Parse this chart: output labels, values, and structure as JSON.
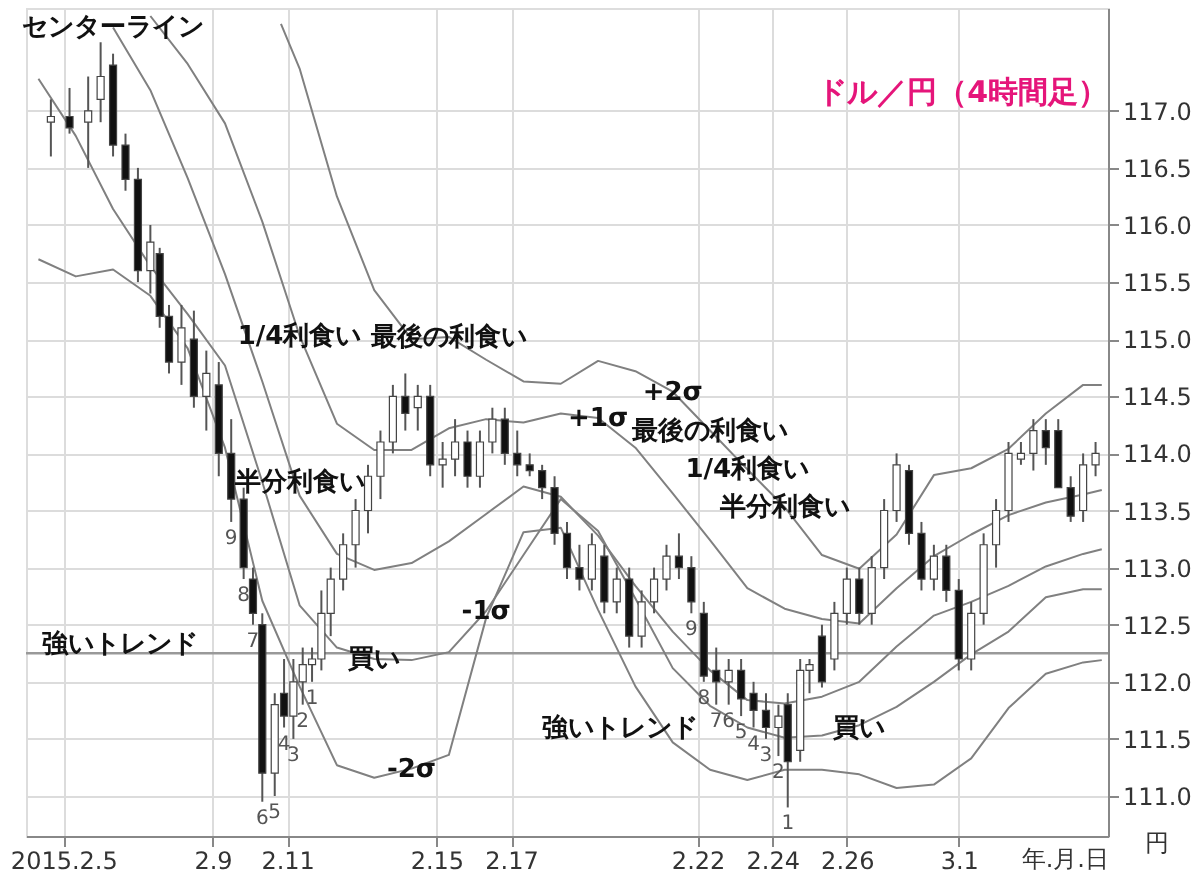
{
  "chart_data": {
    "type": "candlestick",
    "title": "ドル／円（4時間足）",
    "xlabel": "年.月.日",
    "ylabel": "円",
    "x": [
      "2015-02-04T16:00",
      "2015-02-05T04:00",
      "2015-02-05T16:00",
      "2015-02-06T00:00",
      "2015-02-06T08:00",
      "2015-02-06T16:00",
      "2015-02-07T00:00",
      "2015-02-07T08:00",
      "2015-02-07T14:00",
      "2015-02-07T20:00",
      "2015-02-08T04:00",
      "2015-02-08T12:00",
      "2015-02-08T20:00",
      "2015-02-09T04:00",
      "2015-02-09T12:00",
      "2015-02-09T20:00",
      "2015-02-10T02:00",
      "2015-02-10T08:00",
      "2015-02-10T16:00",
      "2015-02-10T22:00",
      "2015-02-11T04:00",
      "2015-02-11T10:00",
      "2015-02-11T16:00",
      "2015-02-11T22:00",
      "2015-02-12T04:00",
      "2015-02-12T12:00",
      "2015-02-12T20:00",
      "2015-02-13T04:00",
      "2015-02-13T12:00",
      "2015-02-13T20:00",
      "2015-02-14T04:00",
      "2015-02-14T12:00",
      "2015-02-14T20:00",
      "2015-02-15T04:00",
      "2015-02-15T12:00",
      "2015-02-15T20:00",
      "2015-02-16T04:00",
      "2015-02-16T12:00",
      "2015-02-16T20:00",
      "2015-02-17T04:00",
      "2015-02-17T12:00",
      "2015-02-17T20:00",
      "2015-02-18T04:00",
      "2015-02-18T12:00",
      "2015-02-18T20:00",
      "2015-02-19T04:00",
      "2015-02-19T12:00",
      "2015-02-19T20:00",
      "2015-02-20T04:00",
      "2015-02-20T12:00",
      "2015-02-20T20:00",
      "2015-02-21T04:00",
      "2015-02-21T12:00",
      "2015-02-21T20:00",
      "2015-02-22T04:00",
      "2015-02-22T12:00",
      "2015-02-22T20:00",
      "2015-02-23T04:00",
      "2015-02-23T12:00",
      "2015-02-23T20:00",
      "2015-02-24T04:00",
      "2015-02-24T10:00",
      "2015-02-24T18:00",
      "2015-02-25T00:00",
      "2015-02-25T08:00",
      "2015-02-25T16:00",
      "2015-02-26T00:00",
      "2015-02-26T08:00",
      "2015-02-26T16:00",
      "2015-02-27T00:00",
      "2015-02-27T08:00",
      "2015-02-27T16:00",
      "2015-02-28T00:00",
      "2015-02-28T08:00",
      "2015-02-28T16:00",
      "2015-03-01T00:00",
      "2015-03-01T08:00",
      "2015-03-01T16:00",
      "2015-03-02T00:00",
      "2015-03-02T08:00",
      "2015-03-02T16:00",
      "2015-03-03T00:00",
      "2015-03-03T08:00",
      "2015-03-03T16:00",
      "2015-03-04T00:00",
      "2015-03-04T08:00",
      "2015-03-04T16:00"
    ],
    "ohlc": [
      [
        116.9,
        117.1,
        116.6,
        116.95
      ],
      [
        116.95,
        117.2,
        116.8,
        116.85
      ],
      [
        116.9,
        117.3,
        116.5,
        117.0
      ],
      [
        117.1,
        117.6,
        116.9,
        117.3
      ],
      [
        117.4,
        117.5,
        116.6,
        116.7
      ],
      [
        116.7,
        116.8,
        116.3,
        116.4
      ],
      [
        116.4,
        116.5,
        115.5,
        115.6
      ],
      [
        115.6,
        116.0,
        115.4,
        115.85
      ],
      [
        115.75,
        115.8,
        115.1,
        115.2
      ],
      [
        115.2,
        115.3,
        114.7,
        114.8
      ],
      [
        114.8,
        115.3,
        114.6,
        115.1
      ],
      [
        115.0,
        115.25,
        114.4,
        114.5
      ],
      [
        114.5,
        114.9,
        114.2,
        114.7
      ],
      [
        114.6,
        114.8,
        113.8,
        114.0
      ],
      [
        114.0,
        114.3,
        113.4,
        113.6
      ],
      [
        113.6,
        113.7,
        112.9,
        113.0
      ],
      [
        112.9,
        113.0,
        112.5,
        112.6
      ],
      [
        112.5,
        112.6,
        110.95,
        111.2
      ],
      [
        111.2,
        111.9,
        111.0,
        111.8
      ],
      [
        111.9,
        112.2,
        111.6,
        111.7
      ],
      [
        111.7,
        112.2,
        111.5,
        112.0
      ],
      [
        112.0,
        112.3,
        111.8,
        112.15
      ],
      [
        112.15,
        112.3,
        112.0,
        112.2
      ],
      [
        112.2,
        112.8,
        112.1,
        112.6
      ],
      [
        112.6,
        113.0,
        112.4,
        112.9
      ],
      [
        112.9,
        113.3,
        112.8,
        113.2
      ],
      [
        113.2,
        113.6,
        113.0,
        113.5
      ],
      [
        113.5,
        113.9,
        113.3,
        113.8
      ],
      [
        113.8,
        114.2,
        113.6,
        114.1
      ],
      [
        114.1,
        114.6,
        114.0,
        114.5
      ],
      [
        114.5,
        114.7,
        114.2,
        114.35
      ],
      [
        114.4,
        114.6,
        114.2,
        114.5
      ],
      [
        114.5,
        114.6,
        113.8,
        113.9
      ],
      [
        113.9,
        114.1,
        113.7,
        113.95
      ],
      [
        113.95,
        114.3,
        113.8,
        114.1
      ],
      [
        114.1,
        114.2,
        113.7,
        113.8
      ],
      [
        113.8,
        114.2,
        113.7,
        114.1
      ],
      [
        114.1,
        114.4,
        114.0,
        114.3
      ],
      [
        114.3,
        114.4,
        113.9,
        114.0
      ],
      [
        114.0,
        114.2,
        113.8,
        113.9
      ],
      [
        113.9,
        114.0,
        113.8,
        113.85
      ],
      [
        113.85,
        113.9,
        113.6,
        113.7
      ],
      [
        113.7,
        113.8,
        113.2,
        113.3
      ],
      [
        113.3,
        113.4,
        112.9,
        113.0
      ],
      [
        113.0,
        113.2,
        112.8,
        112.9
      ],
      [
        112.9,
        113.3,
        112.8,
        113.2
      ],
      [
        113.1,
        113.2,
        112.6,
        112.7
      ],
      [
        112.7,
        113.0,
        112.6,
        112.9
      ],
      [
        112.9,
        113.0,
        112.3,
        112.4
      ],
      [
        112.4,
        112.8,
        112.3,
        112.7
      ],
      [
        112.7,
        113.0,
        112.6,
        112.9
      ],
      [
        112.9,
        113.2,
        112.8,
        113.1
      ],
      [
        113.1,
        113.3,
        112.9,
        113.0
      ],
      [
        113.0,
        113.1,
        112.6,
        112.7
      ],
      [
        112.6,
        112.7,
        112.0,
        112.05
      ],
      [
        112.1,
        112.3,
        111.8,
        112.0
      ],
      [
        112.0,
        112.2,
        111.8,
        112.1
      ],
      [
        112.1,
        112.2,
        111.7,
        111.85
      ],
      [
        111.9,
        112.0,
        111.6,
        111.75
      ],
      [
        111.75,
        111.9,
        111.5,
        111.6
      ],
      [
        111.6,
        111.8,
        111.35,
        111.7
      ],
      [
        111.8,
        111.9,
        110.9,
        111.3
      ],
      [
        111.4,
        112.2,
        111.3,
        112.1
      ],
      [
        112.1,
        112.2,
        111.9,
        112.15
      ],
      [
        112.4,
        112.5,
        111.95,
        112.0
      ],
      [
        112.2,
        112.7,
        112.1,
        112.6
      ],
      [
        112.6,
        113.0,
        112.5,
        112.9
      ],
      [
        112.9,
        113.0,
        112.5,
        112.6
      ],
      [
        112.6,
        113.1,
        112.5,
        113.0
      ],
      [
        113.0,
        113.6,
        112.9,
        113.5
      ],
      [
        113.5,
        114.0,
        113.4,
        113.9
      ],
      [
        113.85,
        113.9,
        113.2,
        113.3
      ],
      [
        113.3,
        113.4,
        112.8,
        112.9
      ],
      [
        112.9,
        113.2,
        112.8,
        113.1
      ],
      [
        113.1,
        113.2,
        112.7,
        112.8
      ],
      [
        112.8,
        112.9,
        112.1,
        112.2
      ],
      [
        112.2,
        112.7,
        112.1,
        112.6
      ],
      [
        112.6,
        113.3,
        112.5,
        113.2
      ],
      [
        113.2,
        113.6,
        113.0,
        113.5
      ],
      [
        113.5,
        114.1,
        113.4,
        114.0
      ],
      [
        113.95,
        114.1,
        113.9,
        114.0
      ],
      [
        114.0,
        114.3,
        113.85,
        114.2
      ],
      [
        114.2,
        114.3,
        113.9,
        114.05
      ],
      [
        114.2,
        114.3,
        113.7,
        113.7
      ],
      [
        113.7,
        113.8,
        113.4,
        113.45
      ],
      [
        113.5,
        114.0,
        113.4,
        113.9
      ],
      [
        113.9,
        114.1,
        113.8,
        114.0
      ]
    ],
    "series": [
      {
        "type": "line",
        "color": "#808080",
        "x": [
          "2015-02-10T20:00",
          "2015-02-11T08:00",
          "2015-02-12T08:00",
          "2015-02-13T08:00",
          "2015-02-14T08:00",
          "2015-02-15T08:00",
          "2015-02-16T08:00",
          "2015-02-17T08:00",
          "2015-02-18T08:00",
          "2015-02-19T08:00",
          "2015-02-20T08:00",
          "2015-02-21T08:00",
          "2015-02-22T08:00",
          "2015-02-23T08:00",
          "2015-02-24T08:00",
          "2015-02-25T08:00",
          "2015-02-26T08:00",
          "2015-02-27T08:00",
          "2015-02-28T08:00",
          "2015-03-01T08:00",
          "2015-03-02T08:00",
          "2015-03-03T08:00",
          "2015-03-04T08:00",
          "2015-03-04T20:00"
        ],
        "values": [
          117.76,
          117.37,
          116.25,
          115.43,
          115.0,
          115.02,
          114.82,
          114.63,
          114.61,
          114.81,
          114.72,
          114.54,
          114.2,
          113.86,
          113.53,
          113.11,
          112.99,
          113.29,
          113.81,
          113.87,
          114.04,
          114.35,
          114.6,
          114.6
        ]
      },
      {
        "type": "line",
        "color": "#808080",
        "x": [
          "2015-02-07T08:00",
          "2015-02-08T08:00",
          "2015-02-09T08:00",
          "2015-02-10T08:00",
          "2015-02-11T08:00",
          "2015-02-12T08:00",
          "2015-02-13T08:00",
          "2015-02-14T08:00",
          "2015-02-15T08:00",
          "2015-02-16T08:00",
          "2015-02-17T08:00",
          "2015-02-18T08:00",
          "2015-02-19T08:00",
          "2015-02-20T08:00",
          "2015-02-21T08:00",
          "2015-02-22T08:00",
          "2015-02-23T08:00",
          "2015-02-24T08:00",
          "2015-02-25T08:00",
          "2015-02-26T08:00",
          "2015-02-27T08:00",
          "2015-02-28T08:00",
          "2015-03-01T08:00",
          "2015-03-02T08:00",
          "2015-03-03T08:00",
          "2015-03-04T08:00",
          "2015-03-04T20:00"
        ],
        "values": [
          117.83,
          117.41,
          116.89,
          116.03,
          115.03,
          114.26,
          114.03,
          114.03,
          114.22,
          114.3,
          114.27,
          114.35,
          114.31,
          114.05,
          113.65,
          113.24,
          112.82,
          112.64,
          112.55,
          112.51,
          112.82,
          113.1,
          113.29,
          113.46,
          113.57,
          113.64,
          113.68
        ]
      },
      {
        "type": "line",
        "color": "#808080",
        "x": [
          "2015-02-06T08:00",
          "2015-02-07T08:00",
          "2015-02-08T08:00",
          "2015-02-09T08:00",
          "2015-02-10T08:00",
          "2015-02-11T08:00",
          "2015-02-12T08:00",
          "2015-02-13T08:00",
          "2015-02-14T08:00",
          "2015-02-15T08:00",
          "2015-02-16T08:00",
          "2015-02-17T08:00",
          "2015-02-18T08:00",
          "2015-02-19T08:00",
          "2015-02-20T08:00",
          "2015-02-21T08:00",
          "2015-02-22T08:00",
          "2015-02-23T08:00",
          "2015-02-24T08:00",
          "2015-02-25T08:00",
          "2015-02-26T08:00",
          "2015-02-27T08:00",
          "2015-02-28T08:00",
          "2015-03-01T08:00",
          "2015-03-02T08:00",
          "2015-03-03T08:00",
          "2015-03-04T08:00",
          "2015-03-04T20:00"
        ],
        "values": [
          117.73,
          117.18,
          116.41,
          115.57,
          114.63,
          113.63,
          113.12,
          112.98,
          113.04,
          113.23,
          113.47,
          113.71,
          113.62,
          113.28,
          112.84,
          112.44,
          112.1,
          111.84,
          111.81,
          111.87,
          112.0,
          112.31,
          112.58,
          112.7,
          112.84,
          113.01,
          113.12,
          113.16
        ]
      },
      {
        "type": "line",
        "color": "#808080",
        "x": [
          "2015-02-04T08:00",
          "2015-02-05T08:00",
          "2015-02-06T08:00",
          "2015-02-07T08:00",
          "2015-02-08T08:00",
          "2015-02-09T08:00",
          "2015-02-10T08:00",
          "2015-02-11T08:00",
          "2015-02-12T08:00",
          "2015-02-13T08:00",
          "2015-02-14T08:00",
          "2015-02-15T08:00",
          "2015-02-16T08:00",
          "2015-02-17T08:00",
          "2015-02-18T08:00",
          "2015-02-19T08:00",
          "2015-02-20T08:00",
          "2015-02-21T08:00",
          "2015-02-22T08:00",
          "2015-02-23T08:00",
          "2015-02-24T08:00",
          "2015-02-25T08:00",
          "2015-02-26T08:00",
          "2015-02-27T08:00",
          "2015-02-28T08:00",
          "2015-03-01T08:00",
          "2015-03-02T08:00",
          "2015-03-03T08:00",
          "2015-03-04T08:00",
          "2015-03-04T20:00"
        ],
        "values": [
          117.28,
          116.78,
          116.14,
          115.64,
          115.22,
          114.77,
          113.75,
          112.67,
          112.3,
          112.2,
          112.19,
          112.26,
          112.62,
          113.11,
          113.6,
          113.32,
          112.73,
          112.12,
          111.79,
          111.6,
          111.51,
          111.53,
          111.62,
          111.78,
          112.0,
          112.24,
          112.44,
          112.74,
          112.81,
          112.81
        ]
      },
      {
        "type": "line",
        "color": "#808080",
        "x": [
          "2015-02-04T08:00",
          "2015-02-05T08:00",
          "2015-02-06T08:00",
          "2015-02-07T08:00",
          "2015-02-08T08:00",
          "2015-02-09T08:00",
          "2015-02-10T08:00",
          "2015-02-11T08:00",
          "2015-02-12T08:00",
          "2015-02-13T08:00",
          "2015-02-14T08:00",
          "2015-02-15T08:00",
          "2015-02-16T08:00",
          "2015-02-17T08:00",
          "2015-02-18T08:00",
          "2015-02-19T08:00",
          "2015-02-20T08:00",
          "2015-02-21T08:00",
          "2015-02-22T08:00",
          "2015-02-23T08:00",
          "2015-02-24T08:00",
          "2015-02-25T08:00",
          "2015-02-26T08:00",
          "2015-02-27T08:00",
          "2015-02-28T08:00",
          "2015-03-01T08:00",
          "2015-03-02T08:00",
          "2015-03-03T08:00",
          "2015-03-04T08:00",
          "2015-03-04T20:00"
        ],
        "values": [
          115.7,
          115.55,
          115.61,
          115.38,
          114.92,
          114.05,
          112.71,
          111.96,
          111.27,
          111.16,
          111.24,
          111.36,
          112.56,
          113.31,
          113.35,
          112.63,
          111.96,
          111.47,
          111.23,
          111.14,
          111.23,
          111.23,
          111.19,
          111.07,
          111.1,
          111.33,
          111.77,
          112.07,
          112.17,
          112.19
        ]
      }
    ],
    "xlim": [
      "2015-02-04",
      "2015-03-05"
    ],
    "ylim": [
      110.65,
      117.9
    ],
    "xticks": [
      {
        "value": "2015-02-05",
        "label": "2015.2.5"
      },
      {
        "value": "2015-02-09",
        "label": "2.9"
      },
      {
        "value": "2015-02-11",
        "label": "2.11"
      },
      {
        "value": "2015-02-15",
        "label": "2.15"
      },
      {
        "value": "2015-02-17",
        "label": "2.17"
      },
      {
        "value": "2015-02-22",
        "label": "2.22"
      },
      {
        "value": "2015-02-24",
        "label": "2.24"
      },
      {
        "value": "2015-02-26",
        "label": "2.26"
      },
      {
        "value": "2015-03-01",
        "label": "3.1"
      }
    ],
    "yticks": [
      {
        "value": 111,
        "label": "111.0"
      },
      111.5,
      {
        "value": 112,
        "label": "112.0"
      },
      112.5,
      {
        "value": 113,
        "label": "113.0"
      },
      113.5,
      {
        "value": 114,
        "label": "114.0"
      },
      114.5,
      {
        "value": 115,
        "label": "115.0"
      },
      115.5,
      {
        "value": 116,
        "label": "116.0"
      },
      116.5,
      {
        "value": 117,
        "label": "117.0"
      }
    ],
    "grid": true,
    "ref_lines": [
      {
        "axis": "y",
        "value": 112.25,
        "color": "#999999"
      }
    ],
    "annotations": [
      {
        "text": "最後の利食い",
        "x": "2015-02-15T08:00",
        "y": 115.02
      },
      {
        "text": "1/4利食い",
        "x": "2015-02-11T08:00",
        "y": 115.03
      },
      {
        "text": "半分利食い",
        "x": "2015-02-11T08:00",
        "y": 113.75
      },
      {
        "text": "買い",
        "x": "2015-02-13T08:00",
        "y": 112.2
      },
      {
        "text": "最後の利食い",
        "x": "2015-02-22T08:00",
        "y": 114.2
      },
      {
        "text": "1/4利食い",
        "x": "2015-02-23T08:00",
        "y": 113.86
      },
      {
        "text": "半分利食い",
        "x": "2015-02-24T08:00",
        "y": 113.53
      },
      {
        "text": "買い",
        "x": "2015-02-26T08:00",
        "y": 111.6
      },
      {
        "text": "センターライン",
        "x": "2015-02-06T08:00",
        "y": 117.73
      },
      {
        "text": "+2σ",
        "x": "2015-02-21T08:00",
        "y": 114.54
      },
      {
        "text": "+1σ",
        "x": "2015-02-19T08:00",
        "y": 114.31
      },
      {
        "text": "-1σ",
        "x": "2015-02-16T08:00",
        "y": 112.62
      },
      {
        "text": "-2σ",
        "x": "2015-02-14T08:00",
        "y": 111.24
      },
      "強いトレンド",
      "強いトレンド",
      {
        "text": "9",
        "x": "2015-02-09T12:00",
        "y": 113.4
      },
      {
        "text": "8",
        "x": "2015-02-09T20:00",
        "y": 112.9
      },
      {
        "text": "7",
        "x": "2015-02-10T02:00",
        "y": 112.5
      },
      {
        "text": "6",
        "x": "2015-02-10T08:00",
        "y": 110.95
      },
      {
        "text": "5",
        "x": "2015-02-10T16:00",
        "y": 111.0
      },
      {
        "text": "4",
        "x": "2015-02-10T22:00",
        "y": 111.6
      },
      {
        "text": "3",
        "x": "2015-02-11T04:00",
        "y": 111.5
      },
      {
        "text": "2",
        "x": "2015-02-11T10:00",
        "y": 111.8
      },
      {
        "text": "1",
        "x": "2015-02-11T16:00",
        "y": 112.0
      },
      {
        "text": "9",
        "x": "2015-02-21T20:00",
        "y": 112.6
      },
      {
        "text": "8",
        "x": "2015-02-22T04:00",
        "y": 112.0
      },
      {
        "text": "7",
        "x": "2015-02-22T12:00",
        "y": 111.8
      },
      {
        "text": "6",
        "x": "2015-02-22T20:00",
        "y": 111.8
      },
      {
        "text": "5",
        "x": "2015-02-23T04:00",
        "y": 111.7
      },
      {
        "text": "4",
        "x": "2015-02-23T12:00",
        "y": 111.6
      },
      {
        "text": "3",
        "x": "2015-02-23T20:00",
        "y": 111.5
      },
      {
        "text": "2",
        "x": "2015-02-24T04:00",
        "y": 111.35
      },
      {
        "text": "1",
        "x": "2015-02-24T10:00",
        "y": 110.9
      }
    ]
  }
}
